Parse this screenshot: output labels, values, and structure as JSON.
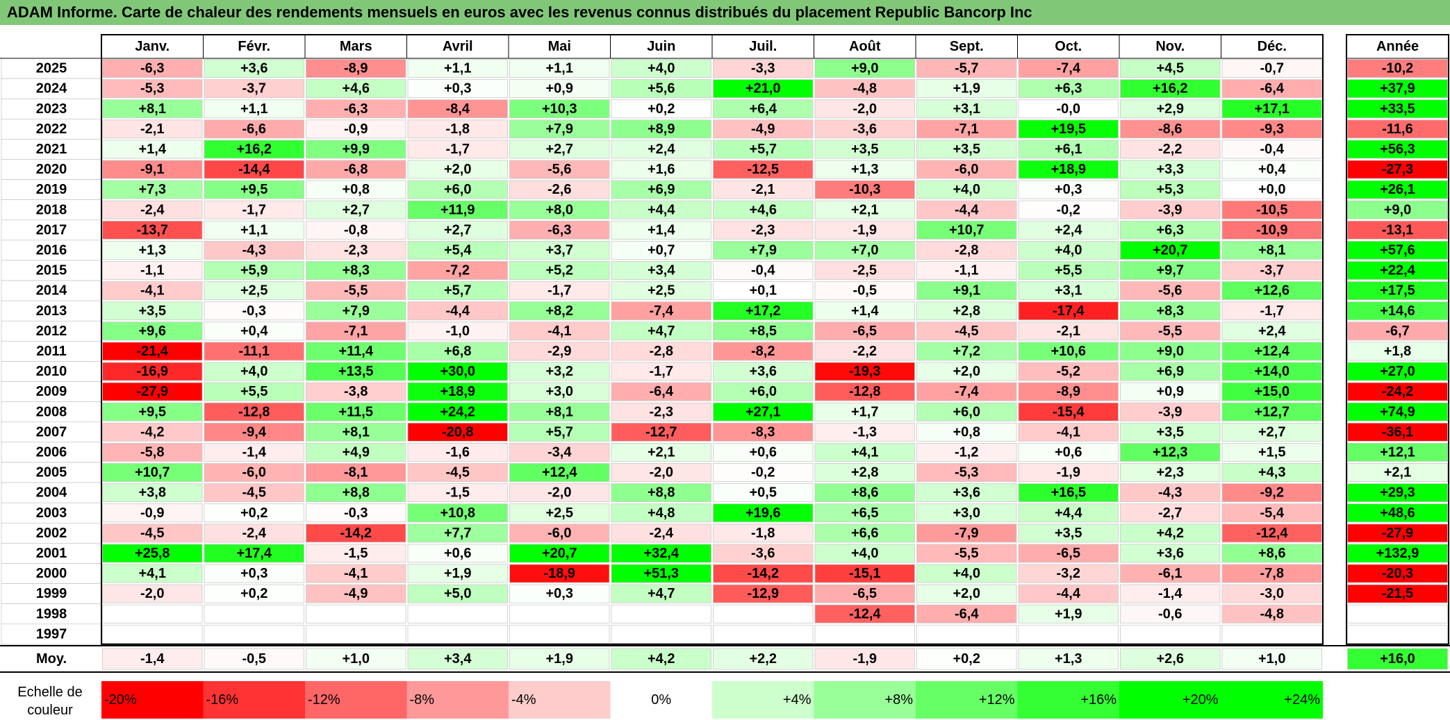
{
  "title": "ADAM Informe. Carte de chaleur des rendements mensuels en euros avec les revenus connus distribués du placement Republic Bancorp Inc",
  "chart_data": {
    "type": "heatmap",
    "title": "ADAM Informe. Carte de chaleur des rendements mensuels en euros avec les revenus connus distribués du placement Republic Bancorp Inc",
    "columns": [
      "Janv.",
      "Févr.",
      "Mars",
      "Avril",
      "Mai",
      "Juin",
      "Juil.",
      "Août",
      "Sept.",
      "Oct.",
      "Nov.",
      "Déc."
    ],
    "annual_header": "Année",
    "rows": [
      {
        "year": "2025",
        "values": [
          "-6,3",
          "+3,6",
          "-8,9",
          "+1,1",
          "+1,1",
          "+4,0",
          "-3,3",
          "+9,0",
          "-5,7",
          "-7,4",
          "+4,5",
          "-0,7"
        ],
        "annual": "-10,2"
      },
      {
        "year": "2024",
        "values": [
          "-5,3",
          "-3,7",
          "+4,6",
          "+0,3",
          "+0,9",
          "+5,6",
          "+21,0",
          "-4,8",
          "+1,9",
          "+6,3",
          "+16,2",
          "-6,4"
        ],
        "annual": "+37,9"
      },
      {
        "year": "2023",
        "values": [
          "+8,1",
          "+1,1",
          "-6,3",
          "-8,4",
          "+10,3",
          "+0,2",
          "+6,4",
          "-2,0",
          "+3,1",
          "-0,0",
          "+2,9",
          "+17,1"
        ],
        "annual": "+33,5"
      },
      {
        "year": "2022",
        "values": [
          "-2,1",
          "-6,6",
          "-0,9",
          "-1,8",
          "+7,9",
          "+8,9",
          "-4,9",
          "-3,6",
          "-7,1",
          "+19,5",
          "-8,6",
          "-9,3"
        ],
        "annual": "-11,6"
      },
      {
        "year": "2021",
        "values": [
          "+1,4",
          "+16,2",
          "+9,9",
          "-1,7",
          "+2,7",
          "+2,4",
          "+5,7",
          "+3,5",
          "+3,5",
          "+6,1",
          "-2,2",
          "-0,4"
        ],
        "annual": "+56,3"
      },
      {
        "year": "2020",
        "values": [
          "-9,1",
          "-14,4",
          "-6,8",
          "+2,0",
          "-5,6",
          "+1,6",
          "-12,5",
          "+1,3",
          "-6,0",
          "+18,9",
          "+3,3",
          "+0,4"
        ],
        "annual": "-27,3"
      },
      {
        "year": "2019",
        "values": [
          "+7,3",
          "+9,5",
          "+0,8",
          "+6,0",
          "-2,6",
          "+6,9",
          "-2,1",
          "-10,3",
          "+4,0",
          "+0,3",
          "+5,3",
          "+0,0"
        ],
        "annual": "+26,1"
      },
      {
        "year": "2018",
        "values": [
          "-2,4",
          "-1,7",
          "+2,7",
          "+11,9",
          "+8,0",
          "+4,4",
          "+4,6",
          "+2,1",
          "-4,4",
          "-0,2",
          "-3,9",
          "-10,5"
        ],
        "annual": "+9,0"
      },
      {
        "year": "2017",
        "values": [
          "-13,7",
          "+1,1",
          "-0,8",
          "+2,7",
          "-6,3",
          "+1,4",
          "-2,3",
          "-1,9",
          "+10,7",
          "+2,4",
          "+6,3",
          "-10,9"
        ],
        "annual": "-13,1"
      },
      {
        "year": "2016",
        "values": [
          "+1,3",
          "-4,3",
          "-2,3",
          "+5,4",
          "+3,7",
          "+0,7",
          "+7,9",
          "+7,0",
          "-2,8",
          "+4,0",
          "+20,7",
          "+8,1"
        ],
        "annual": "+57,6"
      },
      {
        "year": "2015",
        "values": [
          "-1,1",
          "+5,9",
          "+8,3",
          "-7,2",
          "+5,2",
          "+3,4",
          "-0,4",
          "-2,5",
          "-1,1",
          "+5,5",
          "+9,7",
          "-3,7"
        ],
        "annual": "+22,4"
      },
      {
        "year": "2014",
        "values": [
          "-4,1",
          "+2,5",
          "-5,5",
          "+5,7",
          "-1,7",
          "+2,5",
          "+0,1",
          "-0,5",
          "+9,1",
          "+3,1",
          "-5,6",
          "+12,6"
        ],
        "annual": "+17,5"
      },
      {
        "year": "2013",
        "values": [
          "+3,5",
          "-0,3",
          "+7,9",
          "-4,4",
          "+8,2",
          "-7,4",
          "+17,2",
          "+1,4",
          "+2,8",
          "-17,4",
          "+8,3",
          "-1,7"
        ],
        "annual": "+14,6"
      },
      {
        "year": "2012",
        "values": [
          "+9,6",
          "+0,4",
          "-7,1",
          "-1,0",
          "-4,1",
          "+4,7",
          "+8,5",
          "-6,5",
          "-4,5",
          "-2,1",
          "-5,5",
          "+2,4"
        ],
        "annual": "-6,7"
      },
      {
        "year": "2011",
        "values": [
          "-21,4",
          "-11,1",
          "+11,4",
          "+6,8",
          "-2,9",
          "-2,8",
          "-8,2",
          "-2,2",
          "+7,2",
          "+10,6",
          "+9,0",
          "+12,4"
        ],
        "annual": "+1,8"
      },
      {
        "year": "2010",
        "values": [
          "-16,9",
          "+4,0",
          "+13,5",
          "+30,0",
          "+3,2",
          "-1,7",
          "+3,6",
          "-19,3",
          "+2,0",
          "-5,2",
          "+6,9",
          "+14,0"
        ],
        "annual": "+27,0"
      },
      {
        "year": "2009",
        "values": [
          "-27,9",
          "+5,5",
          "-3,8",
          "+18,9",
          "+3,0",
          "-6,4",
          "+6,0",
          "-12,8",
          "-7,4",
          "-8,9",
          "+0,9",
          "+15,0"
        ],
        "annual": "-24,2"
      },
      {
        "year": "2008",
        "values": [
          "+9,5",
          "-12,8",
          "+11,5",
          "+24,2",
          "+8,1",
          "-2,3",
          "+27,1",
          "+1,7",
          "+6,0",
          "-15,4",
          "-3,9",
          "+12,7"
        ],
        "annual": "+74,9"
      },
      {
        "year": "2007",
        "values": [
          "-4,2",
          "-9,4",
          "+8,1",
          "-20,8",
          "+5,7",
          "-12,7",
          "-8,3",
          "-1,3",
          "+0,8",
          "-4,1",
          "+3,5",
          "+2,7"
        ],
        "annual": "-36,1"
      },
      {
        "year": "2006",
        "values": [
          "-5,8",
          "-1,4",
          "+4,9",
          "-1,6",
          "-3,4",
          "+2,1",
          "+0,6",
          "+4,1",
          "-1,2",
          "+0,6",
          "+12,3",
          "+1,5"
        ],
        "annual": "+12,1"
      },
      {
        "year": "2005",
        "values": [
          "+10,7",
          "-6,0",
          "-8,1",
          "-4,5",
          "+12,4",
          "-2,0",
          "-0,2",
          "+2,8",
          "-5,3",
          "-1,9",
          "+2,3",
          "+4,3"
        ],
        "annual": "+2,1"
      },
      {
        "year": "2004",
        "values": [
          "+3,8",
          "-4,5",
          "+8,8",
          "-1,5",
          "-2,0",
          "+8,8",
          "+0,5",
          "+8,6",
          "+3,6",
          "+16,5",
          "-4,3",
          "-9,2"
        ],
        "annual": "+29,3"
      },
      {
        "year": "2003",
        "values": [
          "-0,9",
          "+0,2",
          "-0,3",
          "+10,8",
          "+2,5",
          "+4,8",
          "+19,6",
          "+6,5",
          "+3,0",
          "+4,4",
          "-2,7",
          "-5,4"
        ],
        "annual": "+48,6"
      },
      {
        "year": "2002",
        "values": [
          "-4,5",
          "-2,4",
          "-14,2",
          "+7,7",
          "-6,0",
          "-2,4",
          "-1,8",
          "+6,6",
          "-7,9",
          "+3,5",
          "+4,2",
          "-12,4"
        ],
        "annual": "-27,9"
      },
      {
        "year": "2001",
        "values": [
          "+25,8",
          "+17,4",
          "-1,5",
          "+0,6",
          "+20,7",
          "+32,4",
          "-3,6",
          "+4,0",
          "-5,5",
          "-6,5",
          "+3,6",
          "+8,6"
        ],
        "annual": "+132,9"
      },
      {
        "year": "2000",
        "values": [
          "+4,1",
          "+0,3",
          "-4,1",
          "+1,9",
          "-18,9",
          "+51,3",
          "-14,2",
          "-15,1",
          "+4,0",
          "-3,2",
          "-6,1",
          "-7,8"
        ],
        "annual": "-20,3"
      },
      {
        "year": "1999",
        "values": [
          "-2,0",
          "+0,2",
          "-4,9",
          "+5,0",
          "+0,3",
          "+4,7",
          "-12,9",
          "-6,5",
          "+2,0",
          "-4,4",
          "-1,4",
          "-3,0"
        ],
        "annual": "-21,5"
      },
      {
        "year": "1998",
        "values": [
          "",
          "",
          "",
          "",
          "",
          "",
          "",
          "-12,4",
          "-6,4",
          "+1,9",
          "-0,6",
          "-4,8"
        ],
        "annual": ""
      },
      {
        "year": "1997",
        "values": [
          "",
          "",
          "",
          "",
          "",
          "",
          "",
          "",
          "",
          "",
          "",
          ""
        ],
        "annual": ""
      }
    ],
    "average": {
      "label": "Moy.",
      "values": [
        "-1,4",
        "-0,5",
        "+1,0",
        "+3,4",
        "+1,9",
        "+4,2",
        "+2,2",
        "-1,9",
        "+0,2",
        "+1,3",
        "+2,6",
        "+1,0"
      ],
      "annual": "+16,0"
    },
    "scale": {
      "label_lines": [
        "Echelle de",
        "couleur"
      ],
      "steps": [
        {
          "label": "-20%",
          "value": -20,
          "color": "#ff0000"
        },
        {
          "label": "-16%",
          "value": -16,
          "color": "#ff3333"
        },
        {
          "label": "-12%",
          "value": -12,
          "color": "#ff6666"
        },
        {
          "label": "-8%",
          "value": -8,
          "color": "#ff9999"
        },
        {
          "label": "-4%",
          "value": -4,
          "color": "#ffcccc"
        },
        {
          "label": "0%",
          "value": 0,
          "color": "#ffffff"
        },
        {
          "label": "+4%",
          "value": 4,
          "color": "#ccffcc"
        },
        {
          "label": "+8%",
          "value": 8,
          "color": "#99ff99"
        },
        {
          "label": "+12%",
          "value": 12,
          "color": "#66ff66"
        },
        {
          "label": "+16%",
          "value": 16,
          "color": "#33ff33"
        },
        {
          "label": "+20%",
          "value": 20,
          "color": "#00ff00"
        },
        {
          "label": "+24%",
          "value": 24,
          "color": "#00ff00"
        }
      ]
    }
  }
}
